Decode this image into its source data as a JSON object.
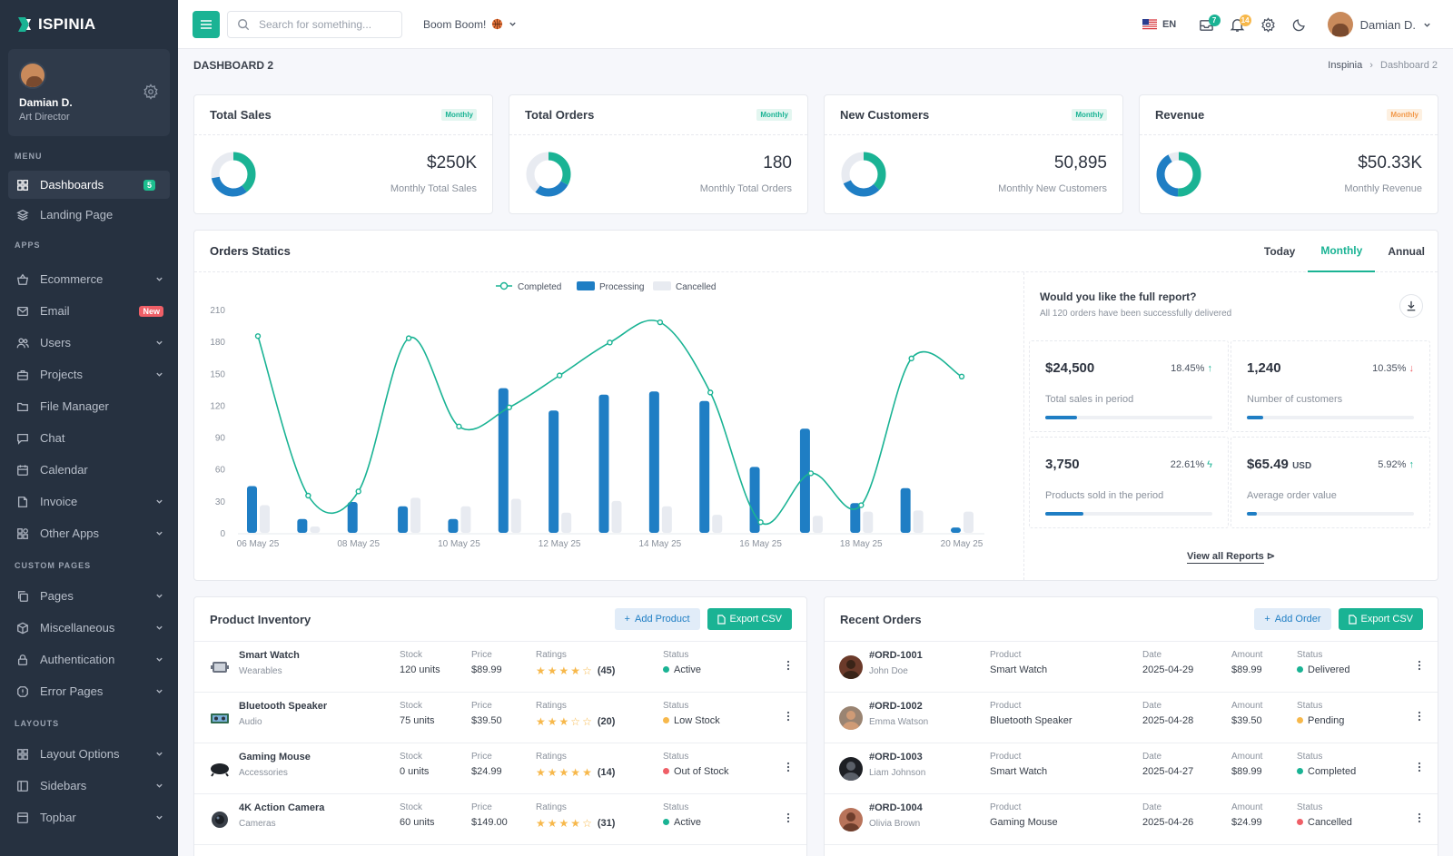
{
  "brand": {
    "name": "SPINIA",
    "logo_letter": "I"
  },
  "sidebar": {
    "user": {
      "name": "Damian D.",
      "role": "Art Director"
    },
    "sections": {
      "menu": "MENU",
      "apps": "APPS",
      "custom": "CUSTOM PAGES",
      "layouts": "LAYOUTS"
    },
    "items": [
      {
        "label": "Dashboards",
        "badge": "5"
      },
      {
        "label": "Landing Page"
      },
      {
        "label": "Ecommerce"
      },
      {
        "label": "Email",
        "badge": "New"
      },
      {
        "label": "Users"
      },
      {
        "label": "Projects"
      },
      {
        "label": "File Manager"
      },
      {
        "label": "Chat"
      },
      {
        "label": "Calendar"
      },
      {
        "label": "Invoice"
      },
      {
        "label": "Other Apps"
      },
      {
        "label": "Pages"
      },
      {
        "label": "Miscellaneous"
      },
      {
        "label": "Authentication"
      },
      {
        "label": "Error Pages"
      },
      {
        "label": "Layout Options"
      },
      {
        "label": "Sidebars"
      },
      {
        "label": "Topbar"
      }
    ]
  },
  "topbar": {
    "search_placeholder": "Search for something...",
    "workspace": "Boom Boom!",
    "lang": "EN",
    "mail_count": "7",
    "notif_count": "14",
    "user": "Damian D."
  },
  "page": {
    "title": "DASHBOARD 2",
    "breadcrumb": [
      "Inspinia",
      "Dashboard 2"
    ]
  },
  "kpis": [
    {
      "title": "Total Sales",
      "tag": "Monthly",
      "value": "$250K",
      "sub": "Monthly Total Sales",
      "fraction": 0.72
    },
    {
      "title": "Total Orders",
      "tag": "Monthly",
      "value": "180",
      "sub": "Monthly Total Orders",
      "fraction": 0.6
    },
    {
      "title": "New Customers",
      "tag": "Monthly",
      "value": "50,895",
      "sub": "Monthly New Customers",
      "fraction": 0.68
    },
    {
      "title": "Revenue",
      "tag": "Monthly",
      "value": "$50.33K",
      "sub": "Monthly Revenue",
      "fraction": 0.92
    }
  ],
  "orders": {
    "title": "Orders Statics",
    "tabs": [
      "Today",
      "Monthly",
      "Annual"
    ],
    "active_tab": "Monthly",
    "report_q": "Would you like the full report?",
    "report_sub": "All 120 orders have been successfully delivered",
    "view_all": "View all Reports",
    "stats": [
      {
        "value": "$24,500",
        "unit": "",
        "pct": "18.45%",
        "trend": "up",
        "label": "Total sales in period",
        "fill": 0.19
      },
      {
        "value": "1,240",
        "unit": "",
        "pct": "10.35%",
        "trend": "down",
        "label": "Number of customers",
        "fill": 0.1
      },
      {
        "value": "3,750",
        "unit": "",
        "pct": "22.61%",
        "trend": "bolt",
        "label": "Products sold in the period",
        "fill": 0.23
      },
      {
        "value": "$65.49",
        "unit": "USD",
        "pct": "5.92%",
        "trend": "up",
        "label": "Average order value",
        "fill": 0.06
      }
    ]
  },
  "chart_data": {
    "type": "bar",
    "categories": [
      "06 May 25",
      "07 May 25",
      "08 May 25",
      "09 May 25",
      "10 May 25",
      "11 May 25",
      "12 May 25",
      "13 May 25",
      "14 May 25",
      "15 May 25",
      "16 May 25",
      "17 May 25",
      "18 May 25",
      "19 May 25",
      "20 May 25"
    ],
    "x_tick_labels": [
      "06 May 25",
      "08 May 25",
      "10 May 25",
      "12 May 25",
      "14 May 25",
      "16 May 25",
      "18 May 25",
      "20 May 25"
    ],
    "series": [
      {
        "name": "Completed",
        "type": "line",
        "values": [
          185,
          35,
          39,
          183,
          100,
          118,
          148,
          179,
          198,
          132,
          10,
          56,
          26,
          164,
          147
        ]
      },
      {
        "name": "Processing",
        "type": "bar",
        "values": [
          44,
          13,
          29,
          25,
          13,
          136,
          115,
          130,
          133,
          124,
          62,
          98,
          28,
          42,
          5
        ]
      },
      {
        "name": "Cancelled",
        "type": "bar",
        "values": [
          26,
          6,
          0,
          33,
          25,
          32,
          19,
          30,
          25,
          17,
          0,
          16,
          20,
          21,
          20
        ]
      }
    ],
    "ylim": [
      0,
      210
    ],
    "yticks": [
      0,
      30,
      60,
      90,
      120,
      150,
      180,
      210
    ],
    "colors": {
      "Completed": "#1ab394",
      "Processing": "#1f7ec4",
      "Cancelled": "#e8ebf1"
    },
    "legend": "top-center",
    "grid": false
  },
  "inventory": {
    "title": "Product Inventory",
    "add": "Add Product",
    "export": "Export CSV",
    "headers": {
      "stock": "Stock",
      "price": "Price",
      "ratings": "Ratings",
      "status": "Status"
    },
    "rows": [
      {
        "name": "Smart Watch",
        "cat": "Wearables",
        "stock": "120 units",
        "price": "$89.99",
        "stars": 4,
        "reviews": "(45)",
        "status": "Active",
        "color": "#1ab394"
      },
      {
        "name": "Bluetooth Speaker",
        "cat": "Audio",
        "stock": "75 units",
        "price": "$39.50",
        "stars": 3,
        "reviews": "(20)",
        "status": "Low Stock",
        "color": "#f7b84b"
      },
      {
        "name": "Gaming Mouse",
        "cat": "Accessories",
        "stock": "0 units",
        "price": "$24.99",
        "stars": 5,
        "reviews": "(14)",
        "status": "Out of Stock",
        "color": "#ef5f67"
      },
      {
        "name": "4K Action Camera",
        "cat": "Cameras",
        "stock": "60 units",
        "price": "$149.00",
        "stars": 4,
        "reviews": "(31)",
        "status": "Active",
        "color": "#1ab394"
      }
    ]
  },
  "recent": {
    "title": "Recent Orders",
    "add": "Add Order",
    "export": "Export CSV",
    "headers": {
      "product": "Product",
      "date": "Date",
      "amount": "Amount",
      "status": "Status"
    },
    "rows": [
      {
        "id": "#ORD-1001",
        "name": "John Doe",
        "product": "Smart Watch",
        "date": "2025-04-29",
        "amount": "$89.99",
        "status": "Delivered",
        "color": "#1ab394"
      },
      {
        "id": "#ORD-1002",
        "name": "Emma Watson",
        "product": "Bluetooth Speaker",
        "date": "2025-04-28",
        "amount": "$39.50",
        "status": "Pending",
        "color": "#f7b84b"
      },
      {
        "id": "#ORD-1003",
        "name": "Liam Johnson",
        "product": "Smart Watch",
        "date": "2025-04-27",
        "amount": "$89.99",
        "status": "Completed",
        "color": "#1ab394"
      },
      {
        "id": "#ORD-1004",
        "name": "Olivia Brown",
        "product": "Gaming Mouse",
        "date": "2025-04-26",
        "amount": "$24.99",
        "status": "Cancelled",
        "color": "#ef5f67"
      }
    ]
  }
}
